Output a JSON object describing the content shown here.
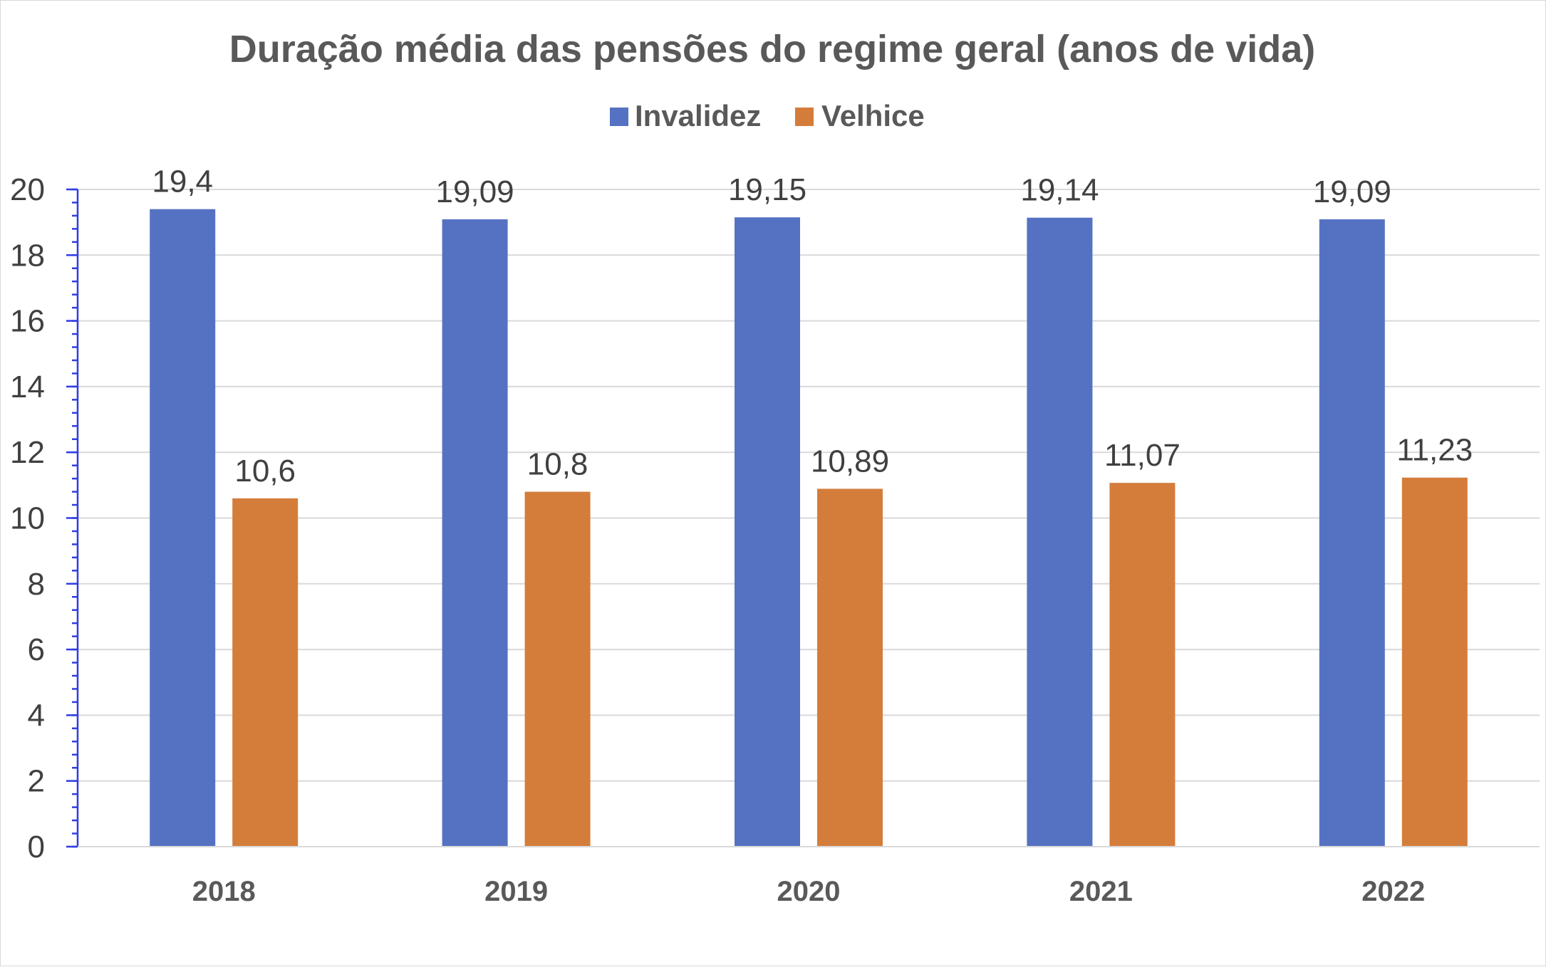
{
  "chart_data": {
    "type": "bar",
    "title": "Duração média das pensões do regime geral (anos de vida)",
    "categories": [
      "2018",
      "2019",
      "2020",
      "2021",
      "2022"
    ],
    "series": [
      {
        "name": "Invalidez",
        "color": "#5572c2",
        "values": [
          19.4,
          19.09,
          19.15,
          19.14,
          19.09
        ],
        "labels": [
          "19,4",
          "19,09",
          "19,15",
          "19,14",
          "19,09"
        ]
      },
      {
        "name": "Velhice",
        "color": "#d47d3b",
        "values": [
          10.6,
          10.8,
          10.89,
          11.07,
          11.23
        ],
        "labels": [
          "10,6",
          "10,8",
          "10,89",
          "11,07",
          "11,23"
        ]
      }
    ],
    "ylim": [
      0,
      20
    ],
    "yticks": [
      0,
      2,
      4,
      6,
      8,
      10,
      12,
      14,
      16,
      18,
      20
    ],
    "grid": true,
    "legend_position": "top"
  }
}
